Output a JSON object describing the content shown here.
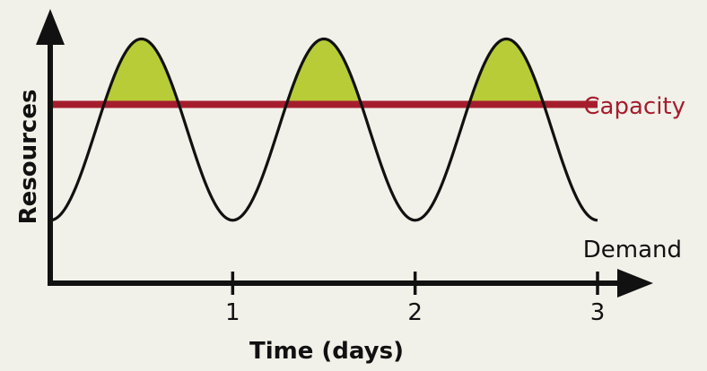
{
  "chart_data": {
    "type": "line",
    "title": "",
    "xlabel": "Time (days)",
    "ylabel": "Resources",
    "xlim": [
      0,
      3
    ],
    "ylim": [
      0,
      1
    ],
    "xticks": [
      1,
      2,
      3
    ],
    "xtick_labels": [
      "1",
      "2",
      "3"
    ],
    "grid": false,
    "series": [
      {
        "name": "Demand",
        "function": "sinusoid",
        "period_days": 1,
        "peak_times": [
          0.5,
          1.5,
          2.5
        ],
        "trough_times": [
          0,
          1,
          2,
          3
        ],
        "min": 0.25,
        "max": 0.97,
        "color": "#111111"
      },
      {
        "name": "Capacity",
        "type": "constant",
        "value": 0.71,
        "color": "#a51d2d"
      }
    ],
    "shading": {
      "description_color": "#b8cc38",
      "between": [
        "Demand",
        "Capacity"
      ],
      "where": "Demand > Capacity"
    },
    "colors": {
      "background": "#f1f1e9",
      "axis": "#111111"
    }
  }
}
